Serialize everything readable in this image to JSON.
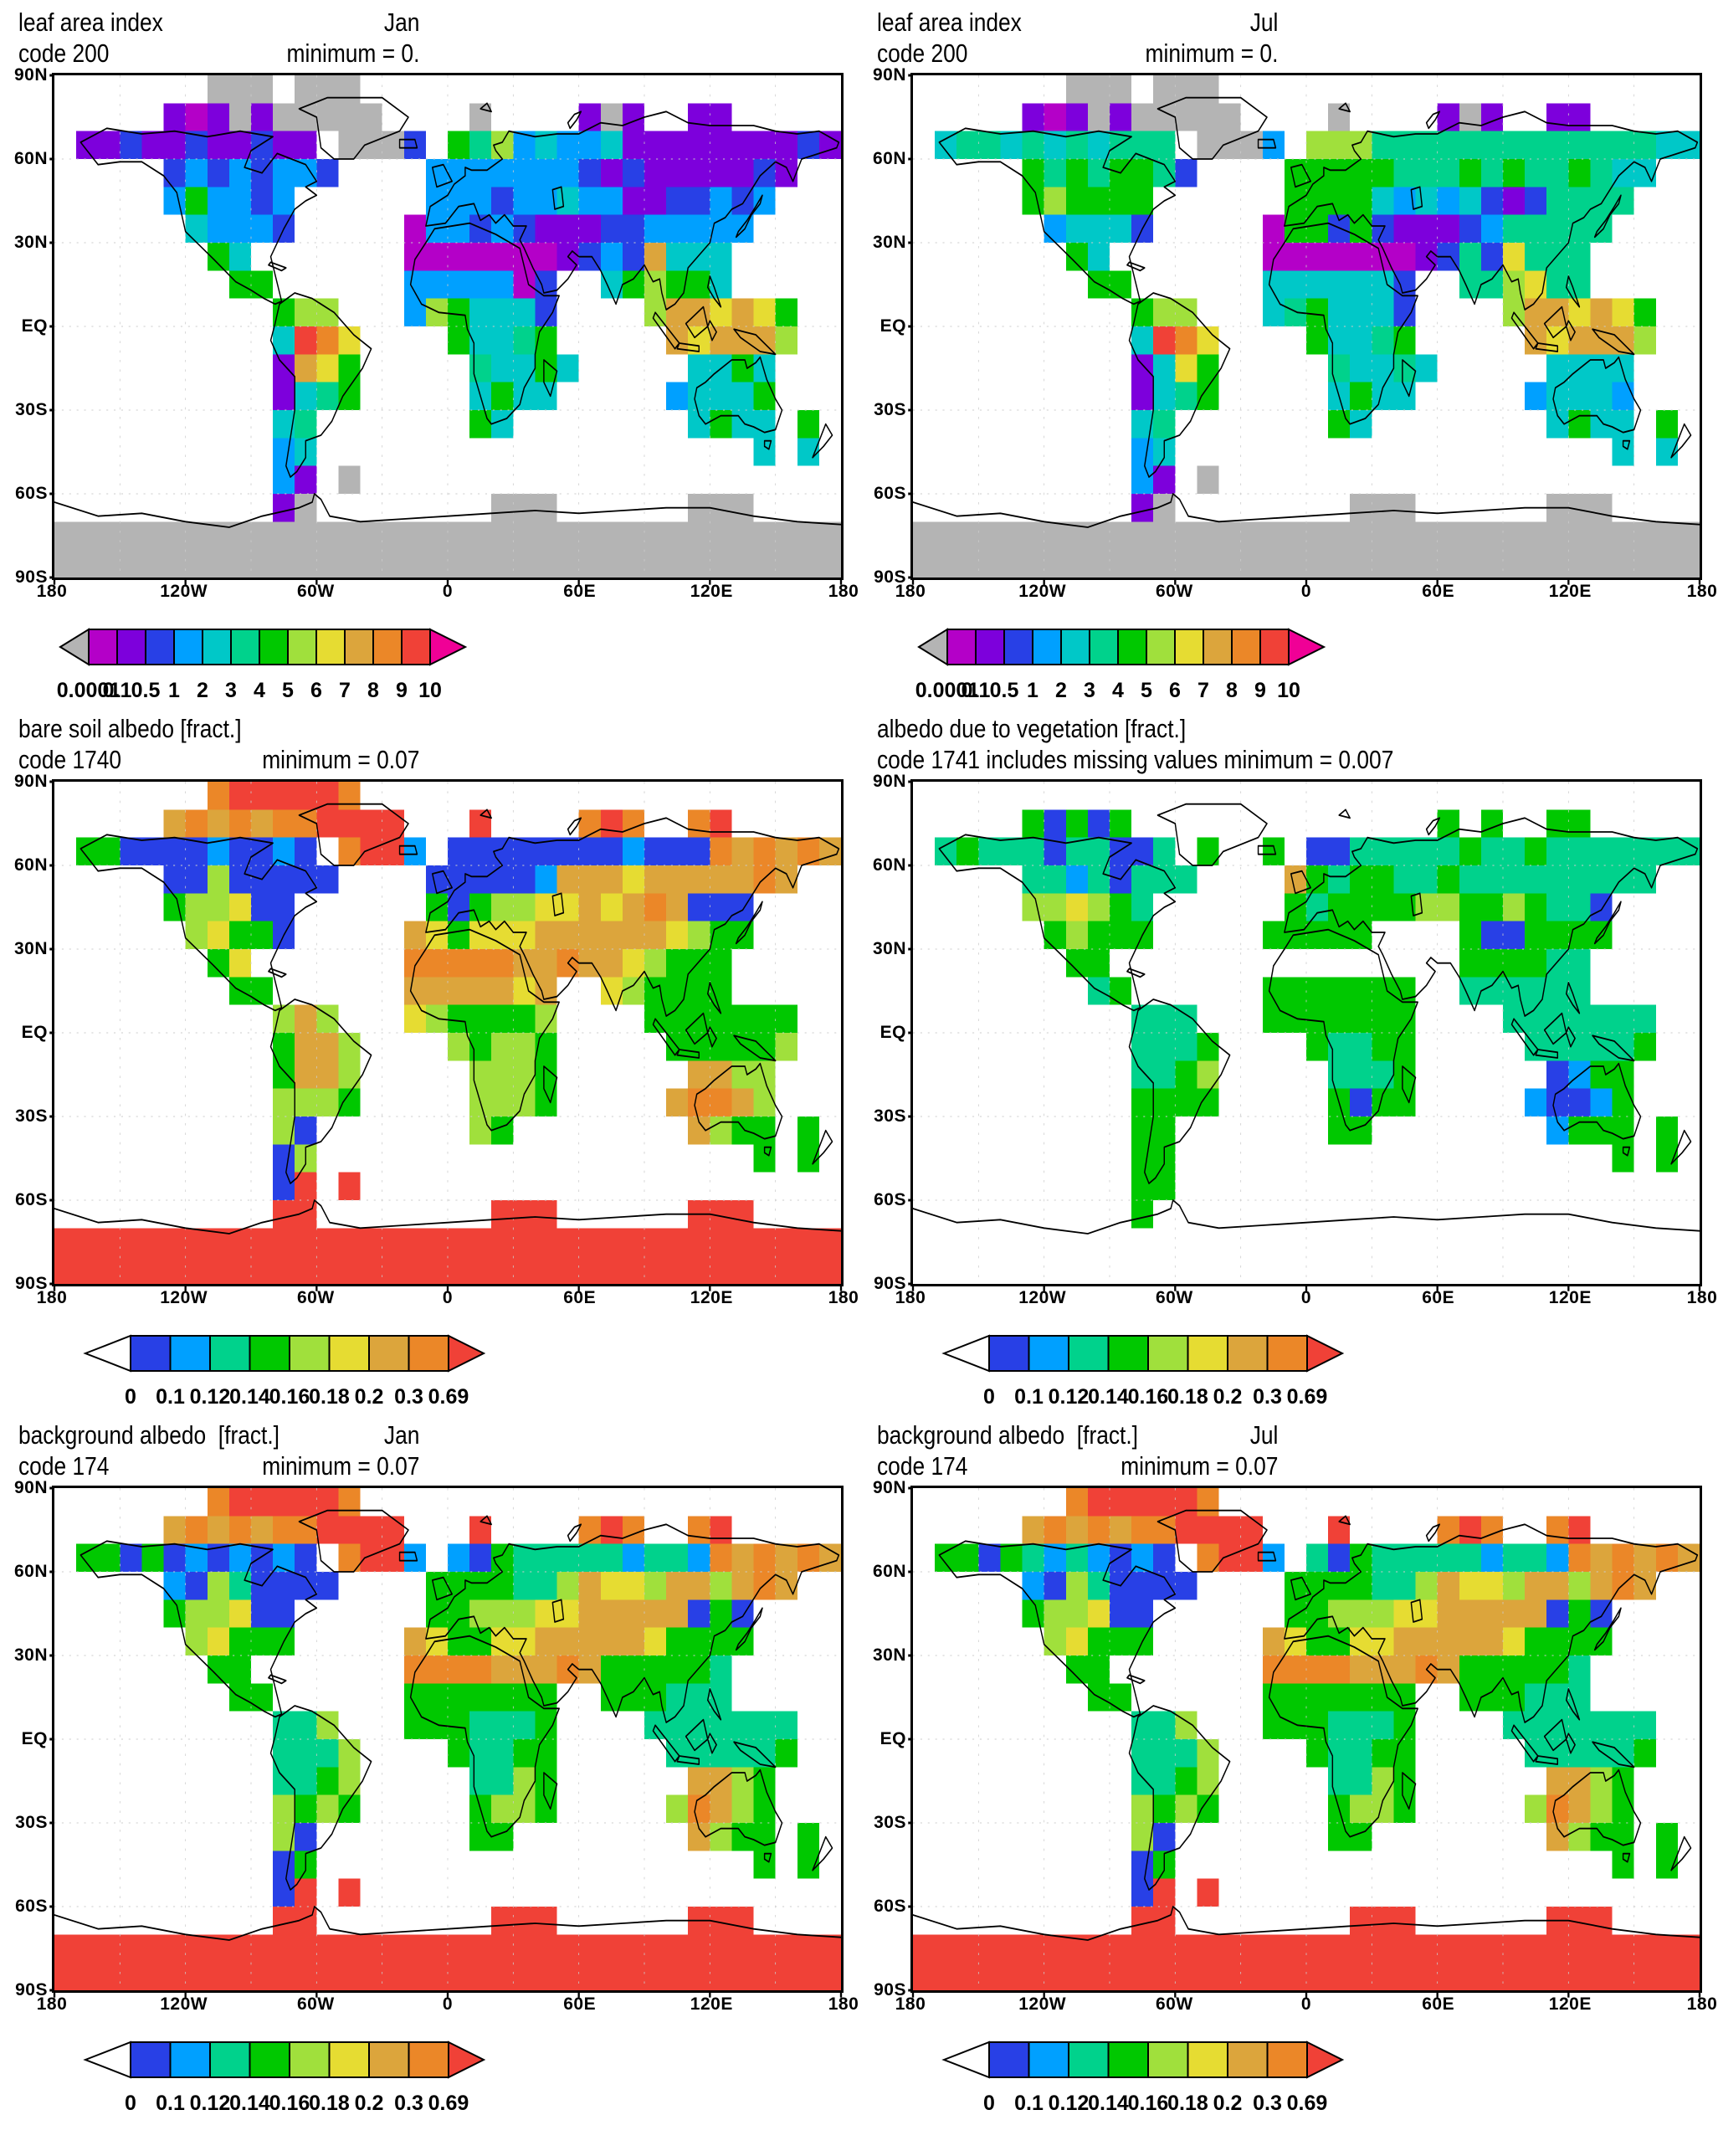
{
  "chart_data": {
    "type": "heatmap",
    "figure": "six-panel global land-surface fields on equirectangular world maps with discrete colorbars",
    "panel_layout": "3 rows x 2 columns",
    "axes": {
      "y": [
        "90N",
        "60N",
        "30N",
        "EQ",
        "30S",
        "60S",
        "90S"
      ],
      "x": [
        "180",
        "120W",
        "60W",
        "0",
        "60E",
        "120E",
        "180"
      ]
    },
    "palette": {
      "w": "#ffffff",
      "g": "#b4b4b4",
      "m": "#b400c8",
      "p": "#7d00dc",
      "b": "#2840e6",
      "l": "#00a0ff",
      "c": "#00c8c8",
      "t": "#00d28c",
      "G": "#00c800",
      "y": "#a0e03c",
      "Y": "#e6dc32",
      "o": "#dca53c",
      "O": "#eb8728",
      "r": "#f04137",
      "M": "#f00096"
    },
    "colorbars": {
      "lai": {
        "labels": [
          "0.0001",
          "0.1",
          "0.5",
          "1",
          "2",
          "3",
          "4",
          "5",
          "6",
          "7",
          "8",
          "9",
          "10"
        ],
        "segments": [
          "m",
          "p",
          "b",
          "l",
          "c",
          "t",
          "G",
          "y",
          "Y",
          "o",
          "O",
          "r"
        ],
        "left_arrow": "g",
        "right_arrow": "M"
      },
      "alb": {
        "labels": [
          "0",
          "0.1",
          "0.12",
          "0.14",
          "0.16",
          "0.18",
          "0.2",
          "0.3",
          "0.69"
        ],
        "segments": [
          "b",
          "l",
          "t",
          "G",
          "y",
          "Y",
          "o",
          "O"
        ],
        "left_arrow": "w",
        "right_arrow": "r"
      }
    },
    "panels": [
      {
        "title": "leaf area index",
        "code": "code 200",
        "month": "Jan",
        "minimum": "minimum = 0.",
        "colorbar": "lai",
        "grid": [
          ".......ggg.ggg......................",
          ".....pmpgpggggg....g....pgp..pp.....",
          ".ppbppbppbpp.gggb.Gtylcllcppppppppbp",
          ".....blblbllb....lllllllbpbpppppbp..",
          ".....lGllbl......lllbllcllppbblbl...",
          "......clllb.....mllblbpppbblllll....",
          ".......Gc.......mmmmmmmpblboccc.....",
          "........GG......lllllmb..cGyGGc.....",
          "..........Gyy...lyGcccb....yooYoYG..",
          "..........crOY....GcctG.....oYoooy..",
          "..........poYG.....tccGc.....ccGc...",
          "..........pctG.....cGcc.....lcccG...",
          "..........ct.......Gc........cGcc.G.",
          "..........lc....................c.c.",
          "..........lp.g......................",
          "..........pg........ggg......ggg....",
          "gggggggggggggggggggggggggggggggggggg",
          "gggggggggggggggggggggggggggggggggggg"
        ]
      },
      {
        "title": "leaf area index",
        "code": "code 200",
        "month": "Jul",
        "minimum": "minimum = 0.",
        "colorbar": "lai",
        "grid": [
          ".......ggg.ggg......................",
          ".....pmpgpggggg....g....pgp..pp.....",
          ".cttctctcttt.gggl.yyytttttttttttttcc",
          ".....GtGtGGtb....GGGGGtttGtGttGtcc..",
          ".....GyGGGG......GGGGclclcbpbtttt...",
          "......lcccb.....mGGbGbpppblttttt....",
          ".......Gc.......mmmmmmmpbtbYttt.....",
          "........GG......ccccccb..ttyYtt.....",
          "..........Gyy...ctGcccb....yooYoYG..",
          "..........crOY....GcctG.....oYoooy..",
          "..........pcYG.....tcctc.....cccc...",
          "..........pctG.....cGcc.....lcccl...",
          "..........ct.......Gc........cGcc.G.",
          "..........lc....................c.c.",
          "..........lp.g......................",
          "..........pg........ggg......ggg....",
          "gggggggggggggggggggggggggggggggggggg",
          "gggggggggggggggggggggggggggggggggggg"
        ]
      },
      {
        "title": "bare soil albedo [fract.]",
        "code": "code 1740",
        "month": "",
        "minimum": "minimum = 0.07",
        "colorbar": "alb",
        "grid": [
          ".......OrrrrrO......................",
          ".....oOoOoOOrrrr...r....OrO..Or.....",
          ".GGbbbblbblb.Orrl.bbbbbbbblbbbOoOoOo",
          ".....bbybbbbb....bbbbbloooYoooooOo..",
          ".....GyyYbb......GbGyyYYoYoOobbb....",
          "......yYGGb.....oYGYYYooooooYyGG....",
          ".......GY.......OOOOOooOooYyGGG.....",
          "........GG......oooooYo..YyGGGG.....",
          "..........yoy...YyGGGGy....GGGGGGG..",
          "..........Gooy....yGyyG.....GGGGGy..",
          "..........Gooy.....yyyG......ooyy...",
          "..........yyyG.....yyyG.....oOOoy...",
          "..........yb.......yG........oyGG.G.",
          "..........by....................G.G.",
          "..........br.r......................",
          "..........rr........rrr......rrr....",
          "rrrrrrrrrrrrrrrrrrrrrrrrrrrrrrrrrrrr",
          "rrrrrrrrrrrrrrrrrrrrrrrrrrrrrrrrrrrr"
        ]
      },
      {
        "title": "albedo due to vegetation [fract.]",
        "code": "code 1741 includes missing values minimum = 0.007",
        "month": "",
        "minimum": "",
        "colorbar": "alb",
        "grid": [
          "....................................",
          ".....GbGbG..............G.G..GG.....",
          ".tGtttbttbbt.G..G.bbtttttGttGttttttt",
          ".....ttltbttt....oGtGGttGttttttttt..",
          ".....yyYyGt......GtGGGGyyGGyGttb....",
          "......GyGGG.....GGGGG....GbbGGGG....",
          ".......GG................GGGGtt.....",
          "........tG......GGGGGGG..tttttt.....",
          "..........ttt...GGGGGGG....ttttttt..",
          "..........tttG....GttGG.....tttttG..",
          "..........ttGy.....tttG......blGG...",
          "..........GGGG.....GbGG.....lbblG...",
          "..........GG.......GG........lGGG.G.",
          "..........GG....................G.G.",
          "..........GG........................",
          "..........G.........................",
          "....................................",
          "...................................."
        ]
      },
      {
        "title": "background albedo  [fract.]",
        "code": "code 174",
        "month": "Jan",
        "minimum": "minimum = 0.07",
        "colorbar": "alb",
        "grid": [
          ".......OrrrrrO......................",
          ".....oOoOoOOrrrr...r....OrO..Or.....",
          ".GGbGblblblb.Orrl.lbGtttttlttlOoOoOo",
          ".....lbytbbbb....GGGGttyoYYyooyoOo..",
          ".....GyyYbb......GGyyyYYooooobGb....",
          "......yYGGG.....oYGGYYoooooYGGGG....",
          ".......GG.......OOOOoooOoGGGGGt.....",
          "........GG......GGGGGGG..GGGttt.....",
          "..........tty...GGGtttG....ttttttt..",
          "..........ttty....GttGG.....tttttG..",
          "..........ttGy.....ttyG......ooyG...",
          "..........yGyG.....GyyG.....yOoyG...",
          "..........yb.......GG........oyGG.G.",
          "..........bG....................G.G.",
          "..........br.r......................",
          "..........rr........rrr......rrr....",
          "rrrrrrrrrrrrrrrrrrrrrrrrrrrrrrrrrrrr",
          "rrrrrrrrrrrrrrrrrrrrrrrrrrrrrrrrrrrr"
        ]
      },
      {
        "title": "background albedo  [fract.]",
        "code": "code 174",
        "month": "Jul",
        "minimum": "minimum = 0.07",
        "colorbar": "alb",
        "grid": [
          ".......OrrrrrO......................",
          ".....oOoOoOOrrrr...r....OrO..Or.....",
          ".GGbGtltlblb.Orrl.tbGtttttlttlOoOoOo",
          ".....lbytbbbb....GGGGttyoYYyooyoOo..",
          ".....GyyYbb......GGyyyYYooooobGb....",
          "......yYGGG.....oYGGYYoooooYGGGG....",
          ".......GG.......OOOOoooOoGGGGGt.....",
          "........GG......GGGGGGG..GGGttt.....",
          "..........tty...GGGtttG....ttttttt..",
          "..........ttty....GttGG.....tttttG..",
          "..........ttGy.....ttyG......ooyG...",
          "..........yGyG.....GyyG.....yOoyG...",
          "..........yb.......GG........oyGG.G.",
          "..........bG....................G.G.",
          "..........br.r......................",
          "..........rr........rrr......rrr....",
          "rrrrrrrrrrrrrrrrrrrrrrrrrrrrrrrrrrrr",
          "rrrrrrrrrrrrrrrrrrrrrrrrrrrrrrrrrrrr"
        ]
      }
    ]
  },
  "coastline_paths": [
    "M12 24L20 32 30 31 40 31 50 36 56 42 60 56 73 66 83 74 90 77 96 80 101 82 104 81 99 65 105 55 110 48 115 45 120 43 115 40 120 38 115 32 102 28 95 35 87 33 90 27 100 22 85 20 70 22 55 20 40 21 24 19Z",
    "M122 26L128 30 137 30 142 25 158 20 162 15 150 8 125 8 112 12 120 15Z",
    "M103 82L110 78 118 80 128 85 137 93 145 98 141 105 132 115 127 124 122 129 115 131 115 137 111 142 108 144 106 140 108 130 110 120 110 108 103 102 99 95 101 89Z",
    "M174 55L170 60 165 66 163 75 168 82 176 85 188 86 189 91 192 96 192 107 195 115 198 123 200 125 207 123 213 118 215 112 220 105 220 100 222 92 228 85 231 79 224 79 217 75 213 62 202 57 190 53Z",
    "M170 54L172 47 180 43 183 39 188 36 188 33 191 34 198 34 205 30 202 27 201 25 205 24 208 20 220 22 230 21 240 21 250 17 260 18 270 15 280 13 290 17 300 18 310 18 320 18 330 20 340 21 350 20 359 24 358 26 342 30 338 38 335 33 330 31 323 36 315 46 310 48 307 51 302 53 300 60 290 69 288 78 284 82 280 84 278 78 277 73 274 74 270 68 265 73 260 75 257 82 253 75 250 70 246 65 240 65 237 63 235 65 239 68 235 73 230 77 224 78 223 75 219 69 215 62 213 59 216 54 210 54 206 50 202 53 199 50 195 52 192 46 185 47 179 53Z",
    "M175 40L182 38 178 32 173 33Z",
    "M158 26L166 26 165 23 158 23Z",
    "M195 12L200 13 198 10Z",
    "M235 17L238 14 241 13 239 16 236 19Z",
    "M228 41L232 40 233 47 229 48Z",
    "M312 58L316 55 319 50 323 46 324 43 321 47 317 52 313 56Z",
    "M275 85L286 96 284 98 274 87Z",
    "M289 89L297 83 299 90 293 94Z",
    "M285 98L295 99 295 97 286 96Z",
    "M300 88L303 92 301 95 299 90Z",
    "M311 91L321 93 330 100 323 99 314 94Z",
    "M300 72L302 76 305 83 302 80 299 76Z",
    "M99 67L106 69 104 70 98 68Z",
    "M294 112L298 110 302 107 310 102 316 102 317 105 321 103 323 101 326 109 330 116 333 120 330 127 325 128 320 126 316 125 313 122 305 122 298 125 295 122 293 116Z",
    "M325 131L328 131 327 134 325 133Z",
    "M353 125L356 129 352 133 347 137 350 131Z",
    "M224 102L230 106 227 115 224 110Z",
    "M0 153L20 158 40 157 60 160 80 162 95 158 112 155 118 153 119 150 122 152 126 158 140 160 160 159 180 158 200 157 220 156 240 157 260 156 280 155 300 155 320 158 340 160 360 161"
  ]
}
